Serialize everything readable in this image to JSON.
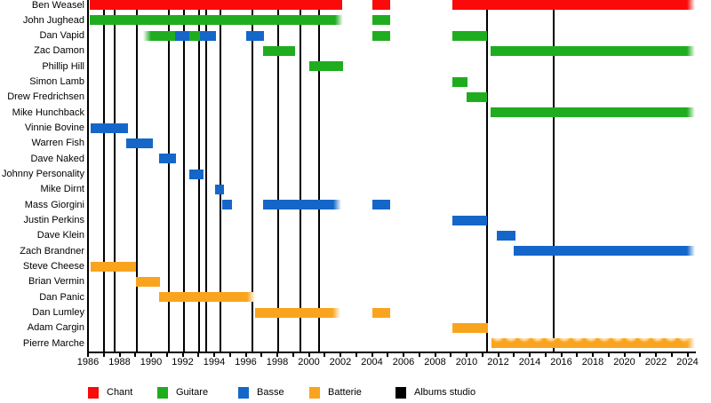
{
  "chart_data": {
    "type": "timeline",
    "title": "",
    "x_axis": {
      "start_year": 1986,
      "end_year": 2024,
      "tick_interval": 1,
      "label_interval": 2,
      "tick_labels": [
        "1986",
        "1988",
        "1990",
        "1992",
        "1994",
        "1996",
        "1998",
        "2000",
        "2002",
        "2004",
        "2006",
        "2008",
        "2010",
        "2012",
        "2014",
        "2016",
        "2018",
        "2020",
        "2022",
        "2024"
      ]
    },
    "colors": {
      "chant": "#fa0a0a",
      "guitare": "#1fad1f",
      "basse": "#1467c8",
      "batterie": "#f9a41f",
      "albums": "#000000"
    },
    "legend": [
      {
        "id": "chant",
        "label": "Chant"
      },
      {
        "id": "guitare",
        "label": "Guitare"
      },
      {
        "id": "basse",
        "label": "Basse"
      },
      {
        "id": "batterie",
        "label": "Batterie"
      },
      {
        "id": "albums",
        "label": "Albums studio"
      }
    ],
    "album_years": [
      1987.0,
      1987.7,
      1989.1,
      1991.1,
      1992.1,
      1993.05,
      1993.5,
      1994.4,
      1996.45,
      1998.05,
      1999.45,
      2000.65,
      2011.3,
      2015.5
    ],
    "members": [
      {
        "name": "Ben Weasel",
        "bars": [
          {
            "role": "chant",
            "start": 1986.1,
            "end": 2002.1
          },
          {
            "role": "chant",
            "start": 2004.05,
            "end": 2005.15
          },
          {
            "role": "chant",
            "start": 2009.1,
            "end": 2024.5,
            "fade_r": true
          }
        ]
      },
      {
        "name": "John Jughead",
        "bars": [
          {
            "role": "guitare",
            "start": 1986.1,
            "end": 2002.15,
            "fade_r": true
          },
          {
            "role": "guitare",
            "start": 2004.0,
            "end": 2005.15
          }
        ]
      },
      {
        "name": "Dan Vapid",
        "bars": [
          {
            "role": "guitare",
            "start": 1989.5,
            "end": 1991.5,
            "fade_l": true
          },
          {
            "role": "basse",
            "start": 1991.5,
            "end": 1992.4
          },
          {
            "role": "guitare",
            "start": 1992.4,
            "end": 1993.1
          },
          {
            "role": "basse",
            "start": 1993.1,
            "end": 1994.1
          },
          {
            "role": "basse",
            "start": 1996.05,
            "end": 1997.15
          },
          {
            "role": "guitare",
            "start": 2004.0,
            "end": 2005.15
          },
          {
            "role": "guitare",
            "start": 2009.1,
            "end": 2011.3
          }
        ]
      },
      {
        "name": "Zac Damon",
        "bars": [
          {
            "role": "guitare",
            "start": 1997.1,
            "end": 1999.15
          },
          {
            "role": "guitare",
            "start": 2011.5,
            "end": 2024.5,
            "fade_r": true
          }
        ]
      },
      {
        "name": "Phillip Hill",
        "bars": [
          {
            "role": "guitare",
            "start": 2000.0,
            "end": 2002.15
          }
        ]
      },
      {
        "name": "Simon Lamb",
        "bars": [
          {
            "role": "guitare",
            "start": 2009.1,
            "end": 2010.05
          }
        ]
      },
      {
        "name": "Drew Fredrichsen",
        "bars": [
          {
            "role": "guitare",
            "start": 2010.0,
            "end": 2011.3
          }
        ]
      },
      {
        "name": "Mike Hunchback",
        "bars": [
          {
            "role": "guitare",
            "start": 2011.5,
            "end": 2024.5,
            "fade_r": true
          }
        ]
      },
      {
        "name": "Vinnie Bovine",
        "bars": [
          {
            "role": "basse",
            "start": 1986.15,
            "end": 1988.55
          }
        ]
      },
      {
        "name": "Warren Fish",
        "bars": [
          {
            "role": "basse",
            "start": 1988.45,
            "end": 1990.1
          }
        ]
      },
      {
        "name": "Dave Naked",
        "bars": [
          {
            "role": "basse",
            "start": 1990.5,
            "end": 1991.6
          }
        ]
      },
      {
        "name": "Johnny Personality",
        "bars": [
          {
            "role": "basse",
            "start": 1992.4,
            "end": 1993.3
          }
        ]
      },
      {
        "name": "Mike Dirnt",
        "bars": [
          {
            "role": "basse",
            "start": 1994.05,
            "end": 1994.6
          }
        ]
      },
      {
        "name": "Mass Giorgini",
        "bars": [
          {
            "role": "basse",
            "start": 1994.5,
            "end": 1995.15
          },
          {
            "role": "basse",
            "start": 1997.1,
            "end": 2002.05,
            "fade_r": true
          },
          {
            "role": "basse",
            "start": 2004.05,
            "end": 2005.15
          }
        ]
      },
      {
        "name": "Justin Perkins",
        "bars": [
          {
            "role": "basse",
            "start": 2009.1,
            "end": 2011.3
          }
        ]
      },
      {
        "name": "Dave Klein",
        "bars": [
          {
            "role": "basse",
            "start": 2011.9,
            "end": 2013.1
          }
        ]
      },
      {
        "name": "Zach Brandner",
        "bars": [
          {
            "role": "basse",
            "start": 2013.0,
            "end": 2024.5,
            "fade_r": true
          }
        ]
      },
      {
        "name": "Steve Cheese",
        "bars": [
          {
            "role": "batterie",
            "start": 1986.15,
            "end": 1989.05
          }
        ]
      },
      {
        "name": "Brian Vermin",
        "bars": [
          {
            "role": "batterie",
            "start": 1989.05,
            "end": 1990.55
          }
        ]
      },
      {
        "name": "Dan Panic",
        "bars": [
          {
            "role": "batterie",
            "start": 1990.5,
            "end": 1996.6,
            "fade_r": true
          }
        ]
      },
      {
        "name": "Dan Lumley",
        "bars": [
          {
            "role": "batterie",
            "start": 1996.6,
            "end": 2002.0,
            "fade_r": true
          },
          {
            "role": "batterie",
            "start": 2004.05,
            "end": 2005.15
          }
        ]
      },
      {
        "name": "Adam Cargin",
        "bars": [
          {
            "role": "batterie",
            "start": 2009.1,
            "end": 2011.35
          }
        ]
      },
      {
        "name": "Pierre Marche",
        "bars": [
          {
            "role": "batterie",
            "start": 2011.55,
            "end": 2024.5,
            "fade_r": true,
            "pattern": "scallop"
          }
        ]
      }
    ]
  }
}
